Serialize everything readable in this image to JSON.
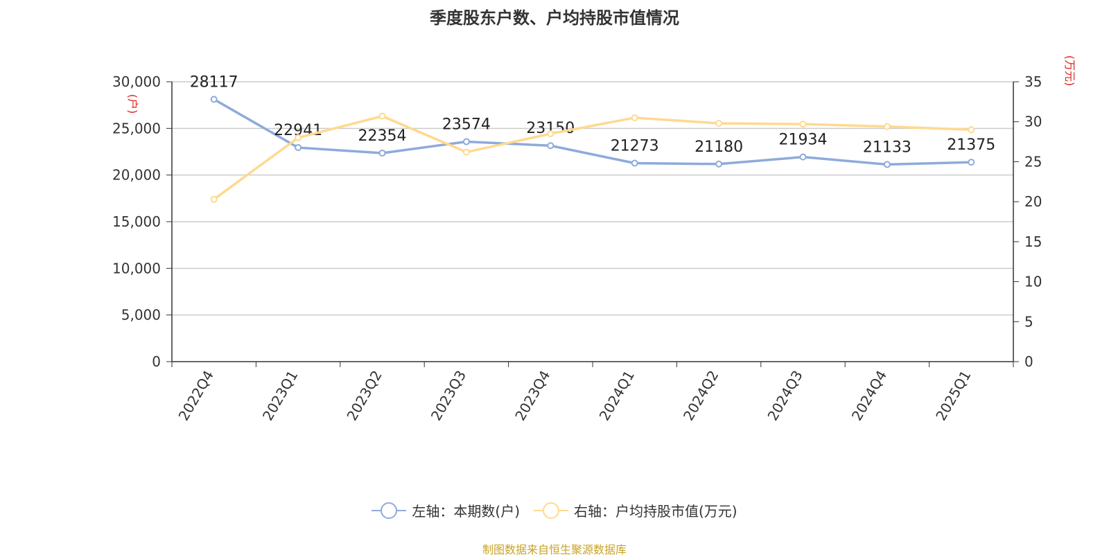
{
  "title": "季度股东户数、户均持股市值情况",
  "source": "制图数据来自恒生聚源数据库",
  "chart_data": {
    "type": "line",
    "categories": [
      "2022Q4",
      "2023Q1",
      "2023Q2",
      "2023Q3",
      "2023Q4",
      "2024Q1",
      "2024Q2",
      "2024Q3",
      "2024Q4",
      "2025Q1"
    ],
    "left_axis": {
      "unit": "(户)",
      "ylim": [
        0,
        30000
      ],
      "ticks": [
        0,
        5000,
        10000,
        15000,
        20000,
        25000,
        30000
      ],
      "tick_labels": [
        "0",
        "5,000",
        "10,000",
        "15,000",
        "20,000",
        "25,000",
        "30,000"
      ]
    },
    "right_axis": {
      "unit": "(万元)",
      "ylim": [
        0,
        35
      ],
      "ticks": [
        0,
        5,
        10,
        15,
        20,
        25,
        30,
        35
      ],
      "tick_labels": [
        "0",
        "5",
        "10",
        "15",
        "20",
        "25",
        "30",
        "35"
      ]
    },
    "grid": true,
    "legend_position": "bottom",
    "series": [
      {
        "name": "左轴：本期数(户)",
        "axis": "left",
        "color": "#8eaadb",
        "values": [
          28117,
          22941,
          22354,
          23574,
          23150,
          21273,
          21180,
          21934,
          21133,
          21375
        ],
        "labels": [
          "28117",
          "22941",
          "22354",
          "23574",
          "23150",
          "21273",
          "21180",
          "21934",
          "21133",
          "21375"
        ]
      },
      {
        "name": "右轴：户均持股市值(万元)",
        "axis": "right",
        "color": "#ffd98e",
        "values": [
          20.3,
          28.0,
          30.7,
          26.2,
          28.5,
          30.5,
          29.8,
          29.7,
          29.4,
          29.0
        ]
      }
    ]
  }
}
